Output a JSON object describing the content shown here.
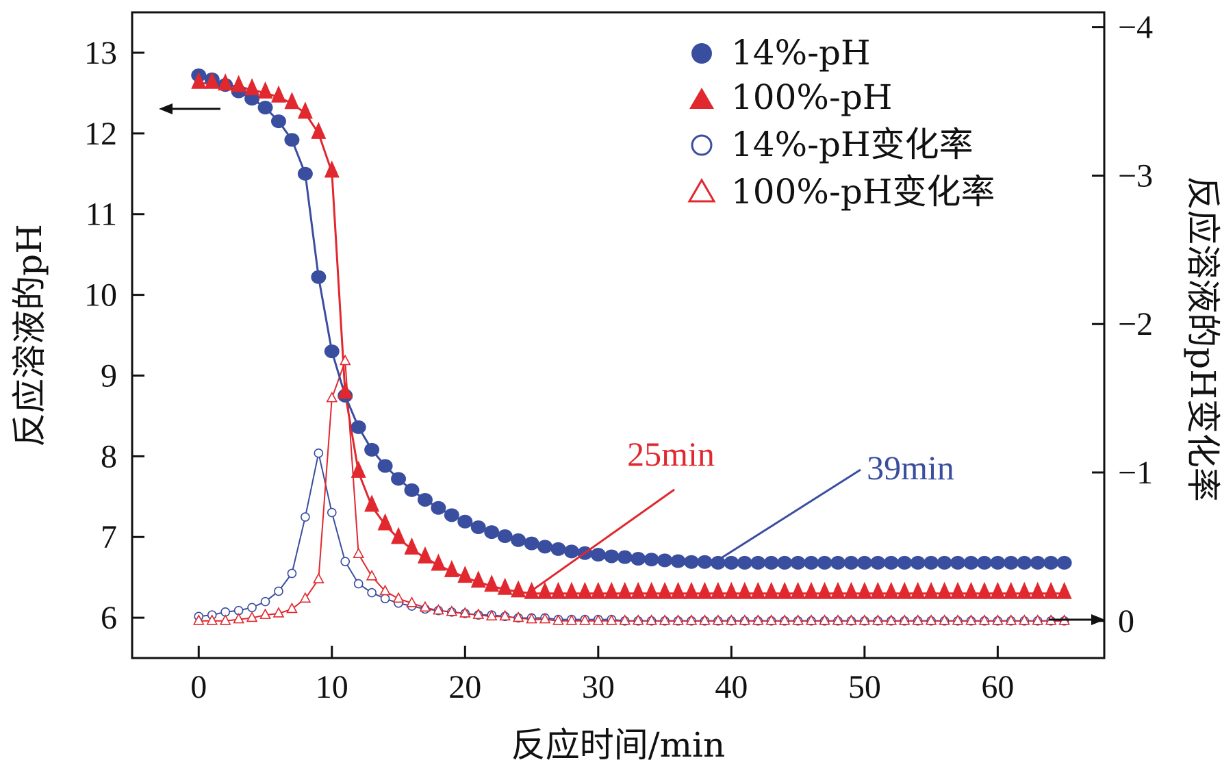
{
  "chart_data": {
    "type": "scatter",
    "title": "",
    "xlabel": "反应时间/min",
    "ylabel_left": "反应溶液的pH",
    "ylabel_right": "反应溶液的pH变化率",
    "xlim": [
      -5,
      68
    ],
    "ylim_left": [
      5.5,
      13.5
    ],
    "ylim_right": [
      0.25,
      -4.1
    ],
    "x_ticks": [
      0,
      10,
      20,
      30,
      40,
      50,
      60
    ],
    "y_left_ticks": [
      6,
      7,
      8,
      9,
      10,
      11,
      12,
      13
    ],
    "y_right_ticks": [
      0,
      -1,
      -2,
      -3,
      -4
    ],
    "y_right_tick_labels": [
      "0",
      "−1",
      "−2",
      "−3",
      "−4"
    ],
    "legend_position": "top-right",
    "series": [
      {
        "name": "14%-pH",
        "axis": "left",
        "marker": "circle-filled",
        "color": "#3a4ea0",
        "x": [
          0,
          1,
          2,
          3,
          4,
          5,
          6,
          7,
          8,
          9,
          10,
          11,
          12,
          13,
          14,
          15,
          16,
          17,
          18,
          19,
          20,
          21,
          22,
          23,
          24,
          25,
          26,
          27,
          28,
          29,
          30,
          31,
          32,
          33,
          34,
          35,
          36,
          37,
          38,
          39,
          40,
          41,
          42,
          43,
          44,
          45,
          46,
          47,
          48,
          49,
          50,
          51,
          52,
          53,
          54,
          55,
          56,
          57,
          58,
          59,
          60,
          61,
          62,
          63,
          64,
          65
        ],
        "y": [
          12.72,
          12.67,
          12.6,
          12.52,
          12.43,
          12.32,
          12.15,
          11.92,
          11.5,
          10.22,
          9.3,
          8.75,
          8.36,
          8.08,
          7.88,
          7.72,
          7.58,
          7.46,
          7.36,
          7.27,
          7.19,
          7.12,
          7.06,
          7.01,
          6.96,
          6.92,
          6.88,
          6.85,
          6.82,
          6.8,
          6.78,
          6.76,
          6.75,
          6.73,
          6.72,
          6.71,
          6.7,
          6.69,
          6.69,
          6.68,
          6.68,
          6.68,
          6.68,
          6.68,
          6.68,
          6.68,
          6.68,
          6.68,
          6.68,
          6.68,
          6.68,
          6.68,
          6.68,
          6.68,
          6.68,
          6.68,
          6.68,
          6.68,
          6.68,
          6.68,
          6.68,
          6.68,
          6.68,
          6.68,
          6.68,
          6.68
        ]
      },
      {
        "name": "100%-pH",
        "axis": "left",
        "marker": "triangle-filled",
        "color": "#e0282e",
        "x": [
          0,
          1,
          2,
          3,
          4,
          5,
          6,
          7,
          8,
          9,
          10,
          11,
          12,
          13,
          14,
          15,
          16,
          17,
          18,
          19,
          20,
          21,
          22,
          23,
          24,
          25,
          26,
          27,
          28,
          29,
          30,
          31,
          32,
          33,
          34,
          35,
          36,
          37,
          38,
          39,
          40,
          41,
          42,
          43,
          44,
          45,
          46,
          47,
          48,
          49,
          50,
          51,
          52,
          53,
          54,
          55,
          56,
          57,
          58,
          59,
          60,
          61,
          62,
          63,
          64,
          65
        ],
        "y": [
          12.62,
          12.62,
          12.6,
          12.58,
          12.54,
          12.5,
          12.45,
          12.37,
          12.25,
          12.0,
          11.52,
          8.78,
          7.8,
          7.38,
          7.15,
          6.98,
          6.85,
          6.74,
          6.65,
          6.57,
          6.5,
          6.44,
          6.39,
          6.35,
          6.32,
          6.3,
          6.3,
          6.3,
          6.3,
          6.3,
          6.3,
          6.3,
          6.3,
          6.3,
          6.3,
          6.3,
          6.3,
          6.3,
          6.3,
          6.3,
          6.3,
          6.3,
          6.3,
          6.3,
          6.3,
          6.3,
          6.3,
          6.3,
          6.3,
          6.3,
          6.3,
          6.3,
          6.3,
          6.3,
          6.3,
          6.3,
          6.3,
          6.3,
          6.3,
          6.3,
          6.3,
          6.3,
          6.3,
          6.3,
          6.3,
          6.3
        ]
      },
      {
        "name": "14%-pH变化率",
        "axis": "right",
        "marker": "circle-open",
        "color": "#3a4ea0",
        "x": [
          0,
          1,
          2,
          3,
          4,
          5,
          6,
          7,
          8,
          9,
          10,
          11,
          12,
          13,
          14,
          15,
          16,
          17,
          18,
          19,
          20,
          21,
          22,
          23,
          24,
          25,
          26,
          27,
          28,
          29,
          30,
          31,
          32,
          33,
          34,
          35,
          36,
          37,
          38,
          39,
          40,
          41,
          42,
          43,
          44,
          45,
          46,
          47,
          48,
          49,
          50,
          51,
          52,
          53,
          54,
          55,
          56,
          57,
          58,
          59,
          60,
          61,
          62,
          63,
          64,
          65
        ],
        "y": [
          -0.03,
          -0.04,
          -0.06,
          -0.07,
          -0.09,
          -0.13,
          -0.2,
          -0.32,
          -0.7,
          -1.13,
          -0.73,
          -0.4,
          -0.25,
          -0.19,
          -0.15,
          -0.12,
          -0.1,
          -0.08,
          -0.07,
          -0.06,
          -0.05,
          -0.04,
          -0.04,
          -0.03,
          -0.02,
          -0.02,
          -0.02,
          -0.01,
          -0.01,
          -0.01,
          -0.01,
          -0.01,
          0,
          0,
          0,
          0,
          0,
          0,
          0,
          0,
          0,
          0,
          0,
          0,
          0,
          0,
          0,
          0,
          0,
          0,
          0,
          0,
          0,
          0,
          0,
          0,
          0,
          0,
          0,
          0,
          0,
          0,
          0,
          0,
          0,
          0
        ]
      },
      {
        "name": "100%-pH变化率",
        "axis": "right",
        "marker": "triangle-open",
        "color": "#e0282e",
        "x": [
          0,
          1,
          2,
          3,
          4,
          5,
          6,
          7,
          8,
          9,
          10,
          11,
          12,
          13,
          14,
          15,
          16,
          17,
          18,
          19,
          20,
          21,
          22,
          23,
          24,
          25,
          26,
          27,
          28,
          29,
          30,
          31,
          32,
          33,
          34,
          35,
          36,
          37,
          38,
          39,
          40,
          41,
          42,
          43,
          44,
          45,
          46,
          47,
          48,
          49,
          50,
          51,
          52,
          53,
          54,
          55,
          56,
          57,
          58,
          59,
          60,
          61,
          62,
          63,
          64,
          65
        ],
        "y": [
          0,
          0,
          0,
          -0.01,
          -0.02,
          -0.04,
          -0.05,
          -0.08,
          -0.15,
          -0.28,
          -1.5,
          -1.75,
          -0.45,
          -0.3,
          -0.2,
          -0.15,
          -0.12,
          -0.09,
          -0.07,
          -0.06,
          -0.05,
          -0.04,
          -0.03,
          -0.03,
          -0.02,
          -0.01,
          -0.01,
          0,
          0,
          0,
          0,
          0,
          0,
          0,
          0,
          0,
          0,
          0,
          0,
          0,
          0,
          0,
          0,
          0,
          0,
          0,
          0,
          0,
          0,
          0,
          0,
          0,
          0,
          0,
          0,
          0,
          0,
          0,
          0,
          0,
          0,
          0,
          0,
          0,
          0,
          0
        ]
      }
    ],
    "annotations": [
      {
        "text": "25min",
        "color": "#e0282e",
        "point_x": 25,
        "point_y": 6.3
      },
      {
        "text": "39min",
        "color": "#3a4ea0",
        "point_x": 39,
        "point_y": 6.68
      }
    ]
  }
}
